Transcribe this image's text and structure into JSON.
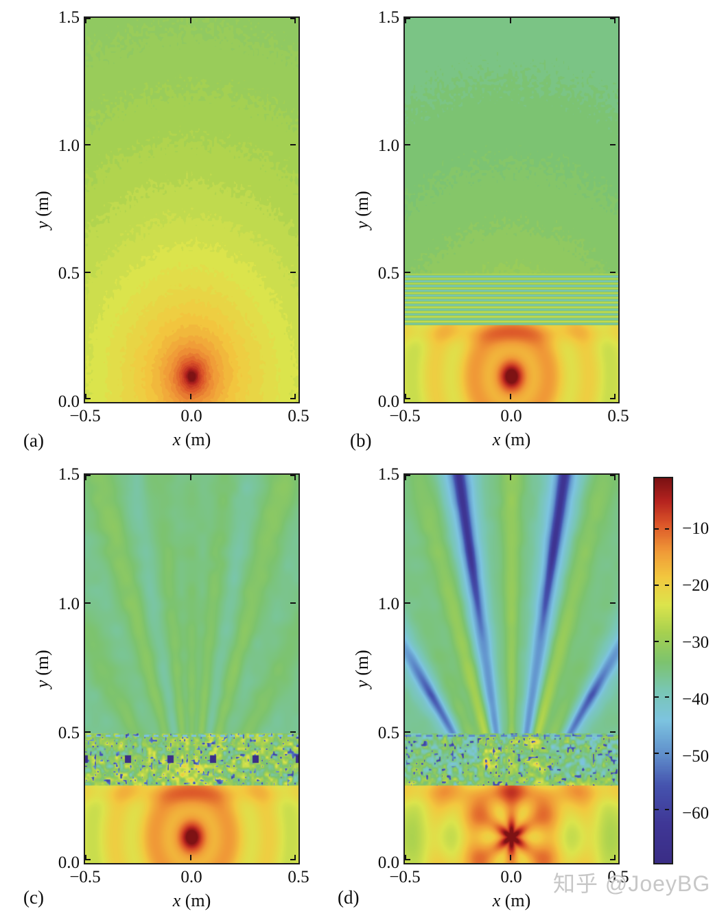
{
  "figure": {
    "watermark": "知乎 @JoeyBG",
    "axis": {
      "x_var": "x",
      "x_unit": " (m)",
      "y_var": "y",
      "y_unit": " (m)"
    },
    "panels": [
      {
        "id": "a",
        "letter": "(a)",
        "xticks": [
          "−0.5",
          "0.0",
          "0.5"
        ],
        "yticks": [
          "1.5",
          "1.0",
          "0.5",
          "0.0"
        ]
      },
      {
        "id": "b",
        "letter": "(b)",
        "xticks": [
          "−0.5",
          "0.0",
          "0.5"
        ],
        "yticks": [
          "1.5",
          "1.0",
          "0.5",
          "0.0"
        ]
      },
      {
        "id": "c",
        "letter": "(c)",
        "xticks": [
          "−0.5",
          "0.0",
          "0.5"
        ],
        "yticks": [
          "1.5",
          "1.0",
          "0.5",
          "0.0"
        ]
      },
      {
        "id": "d",
        "letter": "(d)",
        "xticks": [
          "−0.5",
          "0.0",
          "0.5"
        ],
        "yticks": [
          "1.5",
          "1.0",
          "0.5",
          "0.0"
        ]
      }
    ],
    "colorbar_labels": [
      "−10",
      "−20",
      "−30",
      "−40",
      "−50",
      "−60"
    ]
  },
  "chart_data": {
    "type": "heatmap",
    "layout": "2x2 field-magnitude maps sharing one jet colorbar",
    "x": {
      "label": "x (m)",
      "range": [
        -0.5,
        0.5
      ],
      "ticks": [
        -0.5,
        0.0,
        0.5
      ]
    },
    "y": {
      "label": "y (m)",
      "range": [
        0.0,
        1.5
      ],
      "ticks": [
        0.0,
        0.5,
        1.0,
        1.5
      ]
    },
    "colorbar": {
      "ticks": [
        -10,
        -20,
        -30,
        -40,
        -50,
        -60
      ],
      "range": [
        -69,
        -1
      ],
      "colormap": "jet-like rainbow: dark red → red → orange → yellow → green → cyan → blue → dark violet"
    },
    "source": {
      "position": [
        0.0,
        0.1
      ],
      "peak_level": -5
    },
    "panels": [
      {
        "id": "a",
        "letter": "(a)",
        "description": "Point source in free space: smooth concentric filled contours, red core ≈ −5 dB at (0, 0.1) m fading to yellow-green ≈ −31 dB at y = 1.5 m"
      },
      {
        "id": "b",
        "letter": "(b)",
        "description": "Uniform slab occupying 0.3 ≤ y ≤ 0.5 m: ~11 horizontal standing-wave stripes (teal ≈ −40 dB / yellow ≈ −26 dB, period ≈ 0.019 m); strong orange interference arcs below the slab; smooth transmitted field −30 … −36 dB above"
      },
      {
        "id": "c",
        "letter": "(c)",
        "description": "Row of six dark square scatterers at y ≈ 0.40 m, x = ±0.1, ±0.3, ±0.5 m; speckled multiple-scattering band for 0.3–0.5 m with sparse deep-blue dots; weak yellow-green lobes fanning upward above 0.5 m; arcs below as in (b)"
      },
      {
        "id": "d",
        "letter": "(d)",
        "description": "Directive pattern above 0.5 m: central yellow lobe, side lobes near ±17°…±27°, deep V-shaped blue nulls at ≈ ±10° reaching −60 dB near the top, dark side nulls near ±34°; speckled band 0.3–0.5 m with four orange hot spots near x = ±0.1 m; ray fan below the source"
      }
    ],
    "render": {
      "vmin": -69,
      "vmax": -1,
      "cmap": [
        [
          0.0,
          "#3a2d86"
        ],
        [
          0.1,
          "#3f3796"
        ],
        [
          0.2,
          "#4553ae"
        ],
        [
          0.28,
          "#5f8ecb"
        ],
        [
          0.37,
          "#7dc4e0"
        ],
        [
          0.45,
          "#79c6b2"
        ],
        [
          0.52,
          "#7cc36f"
        ],
        [
          0.6,
          "#a8d14f"
        ],
        [
          0.67,
          "#dce44c"
        ],
        [
          0.74,
          "#f2c93f"
        ],
        [
          0.81,
          "#f09937"
        ],
        [
          0.88,
          "#dc5629"
        ],
        [
          0.94,
          "#b5231f"
        ],
        [
          1.0,
          "#7a1113"
        ]
      ],
      "source": [
        0.0,
        0.1
      ],
      "decay": {
        "A": -28.5,
        "slope": 15.5
      },
      "arcs": {
        "period": 0.185,
        "amp": 4.2,
        "band_y": 0.272
      },
      "slab": {
        "y0": 0.3,
        "y1": 0.5,
        "period": 0.0185,
        "mean": -33.5,
        "contrast": 7
      },
      "upper_b": {
        "ref": -30.5,
        "slope": 9
      },
      "squares": {
        "y": 0.402,
        "half": 0.014,
        "xs": [
          -0.5,
          -0.3,
          -0.1,
          0.1,
          0.3,
          0.5
        ]
      },
      "c_lobe_angles": [
        0.0,
        0.11,
        0.3,
        0.57
      ],
      "d_nulls": {
        "v_angle": 0.175,
        "side_angle": 0.6
      },
      "d_lobes": {
        "center_amp": 5.5,
        "mid_angle": 0.3,
        "outer_angle": 0.47
      }
    }
  }
}
